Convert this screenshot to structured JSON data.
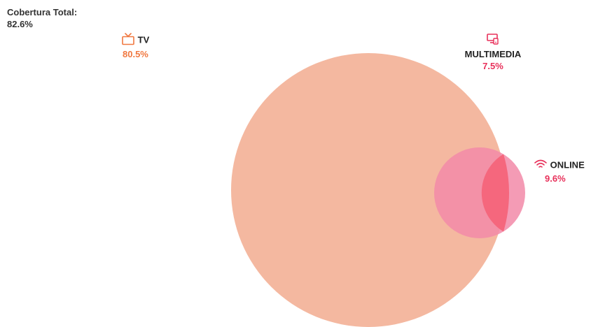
{
  "total": {
    "label": "Cobertura Total:",
    "value": "82.6%"
  },
  "sets": [
    {
      "name": "TV",
      "value": "80.5%",
      "icon": "tv-icon",
      "color": "#f4b8a0",
      "label_color": "#f07840"
    },
    {
      "name": "MULTIMEDIA",
      "value": "7.5%",
      "icon": "multimedia-icon",
      "color": "#e8305a",
      "label_color": "#e8305a"
    },
    {
      "name": "ONLINE",
      "value": "9.6%",
      "icon": "wifi-icon",
      "color": "#f28aa8",
      "label_color": "#e8305a"
    }
  ]
}
